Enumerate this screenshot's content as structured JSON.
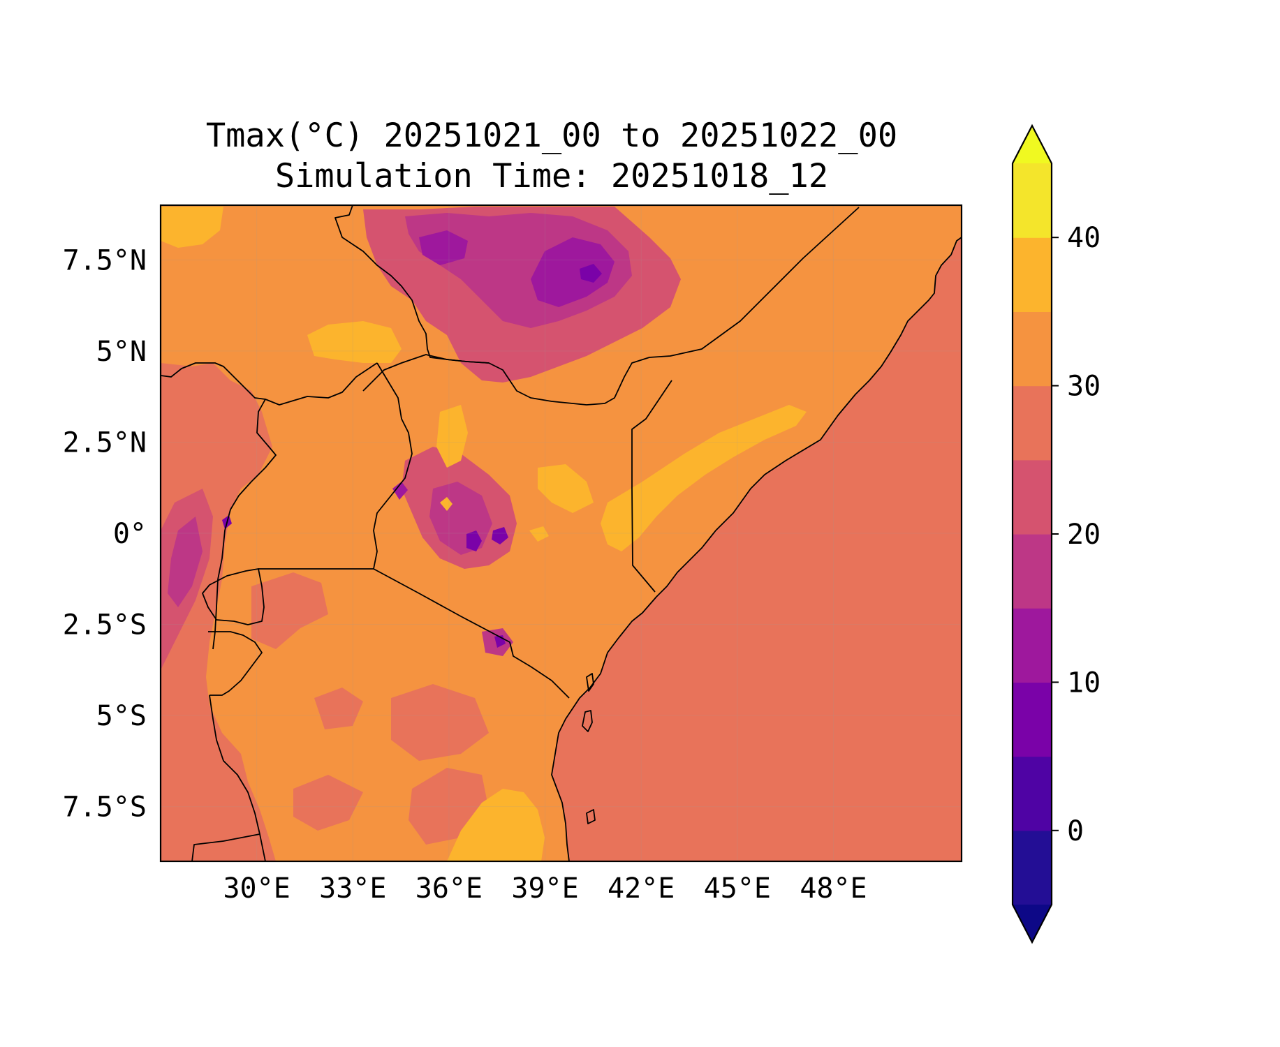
{
  "title": {
    "line1": "Tmax(°C) 20251021_00 to 20251022_00",
    "line2": "Simulation Time: 20251018_12"
  },
  "map": {
    "lon_range": [
      27.0,
      52.0
    ],
    "lat_range": [
      -9.0,
      9.0
    ],
    "x_ticks": [
      {
        "value": 30,
        "label": "30°E"
      },
      {
        "value": 33,
        "label": "33°E"
      },
      {
        "value": 36,
        "label": "36°E"
      },
      {
        "value": 39,
        "label": "39°E"
      },
      {
        "value": 42,
        "label": "42°E"
      },
      {
        "value": 45,
        "label": "45°E"
      },
      {
        "value": 48,
        "label": "48°E"
      }
    ],
    "y_ticks": [
      {
        "value": 7.5,
        "label": "7.5°N"
      },
      {
        "value": 5,
        "label": "5°N"
      },
      {
        "value": 2.5,
        "label": "2.5°N"
      },
      {
        "value": 0,
        "label": "0°"
      },
      {
        "value": -2.5,
        "label": "2.5°S"
      },
      {
        "value": -5,
        "label": "5°S"
      },
      {
        "value": -7.5,
        "label": "7.5°S"
      }
    ],
    "gridlines": true
  },
  "colorbar": {
    "extend": "both",
    "levels": [
      -5,
      0,
      5,
      10,
      15,
      20,
      25,
      30,
      35,
      40,
      45
    ],
    "colors": [
      "#230e95",
      "#4f03a4",
      "#7a02a8",
      "#9e189d",
      "#bd3786",
      "#d5536f",
      "#e8735a",
      "#f59340",
      "#fcb42d",
      "#f4e52b"
    ],
    "under_color": "#0d0887",
    "over_color": "#f0f921",
    "ticks": [
      {
        "value": 0,
        "label": "0"
      },
      {
        "value": 10,
        "label": "10"
      },
      {
        "value": 20,
        "label": "20"
      },
      {
        "value": 30,
        "label": "30"
      },
      {
        "value": 40,
        "label": "40"
      }
    ]
  }
}
